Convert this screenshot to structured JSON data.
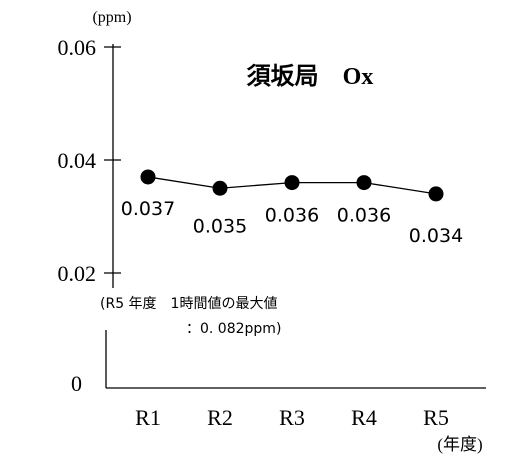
{
  "chart_data": {
    "type": "line",
    "title": "須坂局　Ox",
    "unit_label": "(ppm)",
    "xlabel_unit": "(年度)",
    "categories": [
      "R1",
      "R2",
      "R3",
      "R4",
      "R5"
    ],
    "values": [
      0.037,
      0.035,
      0.036,
      0.036,
      0.034
    ],
    "data_labels": [
      "0.037",
      "0.035",
      "0.036",
      "0.036",
      "0.034"
    ],
    "y_ticks": [
      {
        "value": 0.06,
        "label": "0.06"
      },
      {
        "value": 0.04,
        "label": "0.04"
      },
      {
        "value": 0.02,
        "label": "0.02"
      },
      {
        "value": 0,
        "label": "0"
      }
    ],
    "ylim": [
      0.02,
      0.06
    ],
    "axis_break": true,
    "annotation_line1": "(R5 年度　1時間値の最大値",
    "annotation_line2": "：0. 082ppm)",
    "colors": {
      "line": "#000000",
      "marker": "#000000",
      "axis": "#000000",
      "text": "#000000"
    },
    "grid": false,
    "legend": "none"
  }
}
